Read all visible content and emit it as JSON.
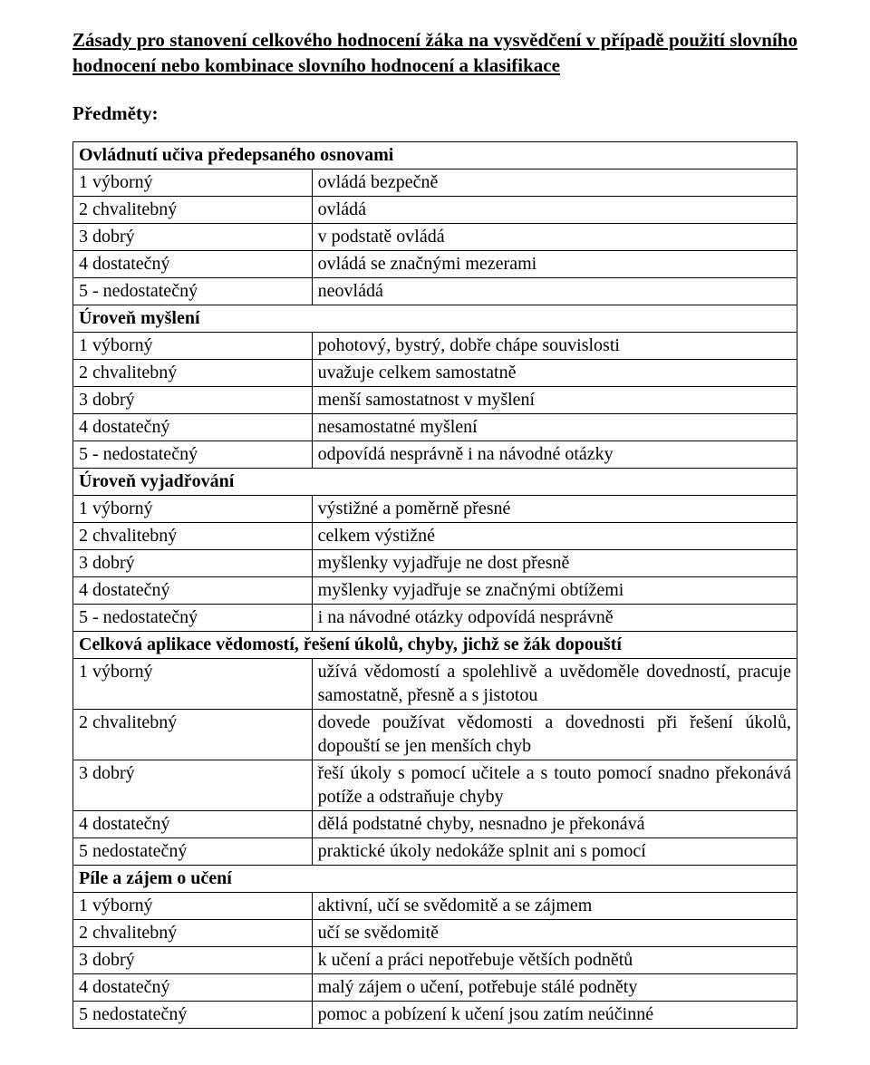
{
  "title": "Zásady pro stanovení celkového hodnocení žáka na vysvědčení v případě použití slovního hodnocení nebo kombinace slovního hodnocení a klasifikace",
  "subjects_label": "Předměty:",
  "sections": [
    {
      "header": "Ovládnutí učiva předepsaného osnovami",
      "rows": [
        {
          "left": "1 výborný",
          "right": "ovládá bezpečně"
        },
        {
          "left": "2 chvalitebný",
          "right": "ovládá"
        },
        {
          "left": "3 dobrý",
          "right": "v podstatě ovládá"
        },
        {
          "left": "4 dostatečný",
          "right": "ovládá se značnými mezerami"
        },
        {
          "left": "5 - nedostatečný",
          "right": "neovládá"
        }
      ]
    },
    {
      "header": "Úroveň myšlení",
      "rows": [
        {
          "left": "1 výborný",
          "right": "pohotový, bystrý, dobře chápe souvislosti"
        },
        {
          "left": "2 chvalitebný",
          "right": "uvažuje celkem samostatně"
        },
        {
          "left": "3 dobrý",
          "right": "menší samostatnost v myšlení"
        },
        {
          "left": "4 dostatečný",
          "right": "nesamostatné myšlení"
        },
        {
          "left": "5 - nedostatečný",
          "right": "odpovídá nesprávně i na návodné otázky"
        }
      ]
    },
    {
      "header": "Úroveň vyjadřování",
      "rows": [
        {
          "left": "1 výborný",
          "right": "výstižné a poměrně přesné"
        },
        {
          "left": "2 chvalitebný",
          "right": "celkem výstižné"
        },
        {
          "left": "3 dobrý",
          "right": "myšlenky vyjadřuje ne dost přesně"
        },
        {
          "left": "4 dostatečný",
          "right": "myšlenky vyjadřuje se značnými obtížemi"
        },
        {
          "left": "5 - nedostatečný",
          "right": "i na návodné otázky odpovídá nesprávně"
        }
      ]
    },
    {
      "header": "Celková aplikace vědomostí, řešení úkolů, chyby, jichž se žák dopouští",
      "rows": [
        {
          "left": "1 výborný",
          "right": "užívá vědomostí a spolehlivě a uvědoměle dovedností, pracuje samostatně, přesně a s jistotou",
          "justify": true
        },
        {
          "left": "2 chvalitebný",
          "right": "dovede používat vědomosti a dovednosti při řešení úkolů, dopouští se jen menších chyb",
          "justify": true
        },
        {
          "left": "3 dobrý",
          "right": "řeší úkoly s pomocí učitele a s touto pomocí snadno překonává potíže a odstraňuje chyby",
          "justify": true
        },
        {
          "left": "4 dostatečný",
          "right": "dělá podstatné chyby, nesnadno je překonává"
        },
        {
          "left": "5 nedostatečný",
          "right": "praktické úkoly nedokáže splnit ani s pomocí"
        }
      ]
    },
    {
      "header": "Píle a zájem o učení",
      "rows": [
        {
          "left": "1 výborný",
          "right": "aktivní, učí se svědomitě a se zájmem"
        },
        {
          "left": "2 chvalitebný",
          "right": "učí se svědomitě"
        },
        {
          "left": "3 dobrý",
          "right": "k učení a práci nepotřebuje větších podnětů"
        },
        {
          "left": "4 dostatečný",
          "right": "malý zájem o učení, potřebuje stálé podněty"
        },
        {
          "left": "5 nedostatečný",
          "right": "pomoc a pobízení k učení jsou zatím neúčinné"
        }
      ]
    }
  ]
}
